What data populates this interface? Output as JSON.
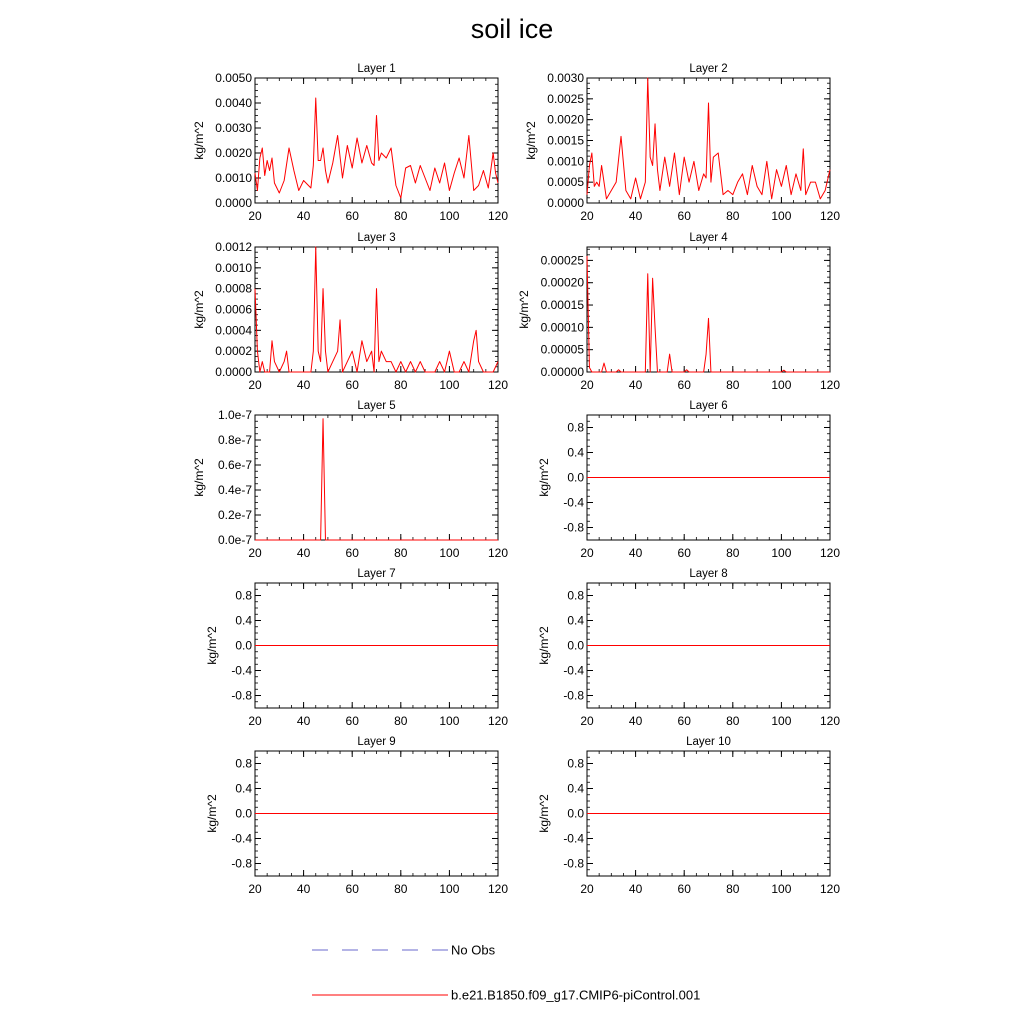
{
  "title": "soil ice",
  "chart_data": [
    {
      "type": "line",
      "title": "Layer 1",
      "ylabel": "kg/m^2",
      "xlim": [
        20,
        120
      ],
      "ylim": [
        0,
        0.005
      ],
      "xticks": [
        "20",
        "40",
        "60",
        "80",
        "100",
        "120"
      ],
      "yticks": [
        "0.0000",
        "0.0010",
        "0.0020",
        "0.0030",
        "0.0040",
        "0.0050"
      ],
      "series": [
        {
          "x": [
            20,
            21,
            22,
            23,
            24,
            25,
            26,
            27,
            28,
            30,
            32,
            34,
            36,
            38,
            40,
            42,
            43,
            44,
            45,
            46,
            47,
            48,
            49,
            50,
            52,
            54,
            56,
            58,
            60,
            62,
            64,
            66,
            68,
            69,
            70,
            71,
            72,
            74,
            76,
            78,
            80,
            82,
            84,
            86,
            88,
            90,
            92,
            94,
            96,
            98,
            100,
            102,
            104,
            106,
            108,
            110,
            112,
            114,
            116,
            118,
            119,
            120
          ],
          "y": [
            0.0012,
            0.0005,
            0.0018,
            0.0022,
            0.0011,
            0.0017,
            0.0013,
            0.0018,
            0.0008,
            0.0004,
            0.0009,
            0.0022,
            0.0013,
            0.0005,
            0.0009,
            0.0007,
            0.0006,
            0.0015,
            0.0042,
            0.0017,
            0.0017,
            0.0022,
            0.0013,
            0.0008,
            0.0016,
            0.0027,
            0.001,
            0.0023,
            0.0014,
            0.0026,
            0.0016,
            0.0023,
            0.0016,
            0.0015,
            0.0035,
            0.0017,
            0.002,
            0.0018,
            0.0022,
            0.0007,
            0.0002,
            0.0014,
            0.0015,
            0.0008,
            0.0015,
            0.001,
            0.0005,
            0.0014,
            0.0008,
            0.0016,
            0.0005,
            0.0012,
            0.0018,
            0.001,
            0.0027,
            0.0005,
            0.0007,
            0.0013,
            0.0006,
            0.002,
            0.0012,
            0.0008
          ]
        }
      ]
    },
    {
      "type": "line",
      "title": "Layer 2",
      "ylabel": "kg/m^2",
      "xlim": [
        20,
        120
      ],
      "ylim": [
        0,
        0.003
      ],
      "xticks": [
        "20",
        "40",
        "60",
        "80",
        "100",
        "120"
      ],
      "yticks": [
        "0.0000",
        "0.0005",
        "0.0010",
        "0.0015",
        "0.0020",
        "0.0025",
        "0.0030"
      ],
      "series": [
        {
          "x": [
            20,
            21,
            22,
            23,
            24,
            25,
            26,
            28,
            30,
            32,
            34,
            36,
            38,
            40,
            42,
            44,
            45,
            46,
            47,
            48,
            49,
            50,
            52,
            54,
            56,
            58,
            60,
            62,
            64,
            66,
            68,
            69,
            70,
            71,
            72,
            74,
            76,
            78,
            80,
            82,
            84,
            86,
            88,
            90,
            92,
            94,
            96,
            98,
            100,
            102,
            104,
            106,
            108,
            109,
            110,
            112,
            114,
            116,
            118,
            120
          ],
          "y": [
            0.0002,
            0.0009,
            0.0012,
            0.0004,
            0.0005,
            0.0004,
            0.0009,
            0.0001,
            0.0003,
            0.0005,
            0.0016,
            0.0003,
            0.0001,
            0.0006,
            0.0001,
            0.0005,
            0.003,
            0.0011,
            0.0009,
            0.0019,
            0.0008,
            0.0003,
            0.0011,
            0.0004,
            0.0012,
            0.0002,
            0.0011,
            0.0005,
            0.001,
            0.0003,
            0.0007,
            0.0006,
            0.0024,
            0.0005,
            0.0011,
            0.0012,
            0.0002,
            0.0003,
            0.0002,
            0.0005,
            0.0007,
            0.0002,
            0.0009,
            0.0004,
            0.0002,
            0.001,
            0.0001,
            0.0008,
            0.0004,
            0.0009,
            0.0002,
            0.0007,
            0.0003,
            0.0013,
            0.0002,
            0.0005,
            0.0005,
            0.0001,
            0.0003,
            0.0008
          ]
        }
      ]
    },
    {
      "type": "line",
      "title": "Layer 3",
      "ylabel": "kg/m^2",
      "xlim": [
        20,
        120
      ],
      "ylim": [
        0,
        0.0012
      ],
      "xticks": [
        "20",
        "40",
        "60",
        "80",
        "100",
        "120"
      ],
      "yticks": [
        "0.0000",
        "0.0002",
        "0.0004",
        "0.0006",
        "0.0008",
        "0.0010",
        "0.0012"
      ],
      "series": [
        {
          "x": [
            20,
            21,
            22,
            23,
            24,
            25,
            26,
            27,
            28,
            30,
            32,
            33,
            34,
            35,
            36,
            38,
            40,
            42,
            43,
            44,
            45,
            46,
            47,
            48,
            49,
            50,
            52,
            54,
            55,
            56,
            58,
            60,
            62,
            64,
            66,
            68,
            69,
            70,
            71,
            72,
            74,
            76,
            78,
            80,
            82,
            84,
            86,
            88,
            90,
            92,
            94,
            96,
            98,
            100,
            102,
            104,
            106,
            108,
            110,
            111,
            112,
            114,
            116,
            118,
            120
          ],
          "y": [
            0.0008,
            0.0002,
            0.0,
            0.0001,
            0.0,
            0.0,
            0.0,
            0.0003,
            0.0001,
            0.0,
            0.0001,
            0.0002,
            0.0,
            0.0,
            0.0,
            0.0,
            0.0,
            0.0,
            0.0,
            0.0002,
            0.0012,
            0.0002,
            0.0001,
            0.0008,
            0.0002,
            0.0,
            0.0001,
            0.0002,
            0.0005,
            0.0,
            0.0001,
            0.0002,
            0.0,
            0.0003,
            0.0001,
            0.0002,
            0.0,
            0.0008,
            0.0001,
            0.0002,
            0.0001,
            0.0001,
            0.0,
            0.0001,
            0.0,
            0.0001,
            0.0,
            0.0001,
            0.0,
            0.0,
            0.0,
            0.0001,
            0.0,
            0.0002,
            0.0,
            0.0,
            0.0001,
            0.0,
            0.0003,
            0.0004,
            0.0001,
            0.0,
            0.0,
            0.0,
            0.0001
          ]
        }
      ]
    },
    {
      "type": "line",
      "title": "Layer 4",
      "ylabel": "kg/m^2",
      "xlim": [
        20,
        120
      ],
      "ylim": [
        0,
        0.00028
      ],
      "xticks": [
        "20",
        "40",
        "60",
        "80",
        "100",
        "120"
      ],
      "yticks": [
        "0.00000",
        "0.00005",
        "0.00010",
        "0.00015",
        "0.00020",
        "0.00025"
      ],
      "series": [
        {
          "x": [
            20,
            21,
            22,
            26,
            27,
            28,
            32,
            33,
            34,
            44,
            45,
            46,
            47,
            48,
            49,
            50,
            53,
            54,
            55,
            58,
            60,
            61,
            62,
            68,
            69,
            70,
            71,
            72,
            100,
            101,
            102,
            120
          ],
          "y": [
            0.00026,
            1e-05,
            0,
            0,
            2e-05,
            0,
            0,
            5e-06,
            0,
            0,
            0.00022,
            0,
            0.00021,
            0.0001,
            0,
            0,
            0,
            4e-05,
            0,
            0,
            0,
            5e-06,
            0,
            0,
            4e-05,
            0.00012,
            0,
            0,
            0,
            4e-06,
            0,
            0
          ]
        }
      ]
    },
    {
      "type": "line",
      "title": "Layer 5",
      "ylabel": "kg/m^2",
      "xlim": [
        20,
        120
      ],
      "ylim": [
        0,
        1e-07
      ],
      "xticks": [
        "20",
        "40",
        "60",
        "80",
        "100",
        "120"
      ],
      "yticks": [
        "0.0e-7",
        "0.2e-7",
        "0.4e-7",
        "0.6e-7",
        "0.8e-7",
        "1.0e-7"
      ],
      "series": [
        {
          "x": [
            20,
            47,
            48,
            49,
            120
          ],
          "y": [
            0,
            0,
            9.7e-08,
            0,
            0
          ]
        }
      ]
    },
    {
      "type": "line",
      "title": "Layer 6",
      "ylabel": "kg/m^2",
      "xlim": [
        20,
        120
      ],
      "ylim": [
        -1,
        1
      ],
      "xticks": [
        "20",
        "40",
        "60",
        "80",
        "100",
        "120"
      ],
      "yticks": [
        "-0.8",
        "-0.4",
        "0.0",
        "0.4",
        "0.8"
      ],
      "series": [
        {
          "x": [
            20,
            120
          ],
          "y": [
            0,
            0
          ]
        }
      ]
    },
    {
      "type": "line",
      "title": "Layer 7",
      "ylabel": "kg/m^2",
      "xlim": [
        20,
        120
      ],
      "ylim": [
        -1,
        1
      ],
      "xticks": [
        "20",
        "40",
        "60",
        "80",
        "100",
        "120"
      ],
      "yticks": [
        "-0.8",
        "-0.4",
        "0.0",
        "0.4",
        "0.8"
      ],
      "series": [
        {
          "x": [
            20,
            120
          ],
          "y": [
            0,
            0
          ]
        }
      ]
    },
    {
      "type": "line",
      "title": "Layer 8",
      "ylabel": "kg/m^2",
      "xlim": [
        20,
        120
      ],
      "ylim": [
        -1,
        1
      ],
      "xticks": [
        "20",
        "40",
        "60",
        "80",
        "100",
        "120"
      ],
      "yticks": [
        "-0.8",
        "-0.4",
        "0.0",
        "0.4",
        "0.8"
      ],
      "series": [
        {
          "x": [
            20,
            120
          ],
          "y": [
            0,
            0
          ]
        }
      ]
    },
    {
      "type": "line",
      "title": "Layer 9",
      "ylabel": "kg/m^2",
      "xlim": [
        20,
        120
      ],
      "ylim": [
        -1,
        1
      ],
      "xticks": [
        "20",
        "40",
        "60",
        "80",
        "100",
        "120"
      ],
      "yticks": [
        "-0.8",
        "-0.4",
        "0.0",
        "0.4",
        "0.8"
      ],
      "series": [
        {
          "x": [
            20,
            120
          ],
          "y": [
            0,
            0
          ]
        }
      ]
    },
    {
      "type": "line",
      "title": "Layer 10",
      "ylabel": "kg/m^2",
      "xlim": [
        20,
        120
      ],
      "ylim": [
        -1,
        1
      ],
      "xticks": [
        "20",
        "40",
        "60",
        "80",
        "100",
        "120"
      ],
      "yticks": [
        "-0.8",
        "-0.4",
        "0.0",
        "0.4",
        "0.8"
      ],
      "series": [
        {
          "x": [
            20,
            120
          ],
          "y": [
            0,
            0
          ]
        }
      ]
    }
  ],
  "legend": {
    "placement": "bottom",
    "items": [
      {
        "label": "No Obs",
        "style": "dashed",
        "color": "#6a6acd"
      },
      {
        "label": "b.e21.B1850.f09_g17.CMIP6-piControl.001",
        "style": "solid",
        "color": "#ff0000"
      }
    ]
  },
  "colors": {
    "model_line": "#ff0000",
    "obs_line": "#6a6acd",
    "axis": "#000000"
  }
}
